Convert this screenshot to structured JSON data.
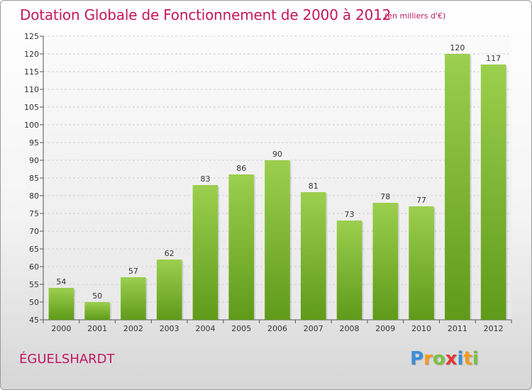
{
  "title": "Dotation Globale de Fonctionnement de 2000 à 2012",
  "subtitle": "(en milliers d'€)",
  "commune": "ÉGUELSHARDT",
  "logo": {
    "letters": [
      "P",
      "r",
      "o",
      "x",
      "i",
      "t",
      "i"
    ],
    "colors": [
      "#3b8fd9",
      "#f29b1d",
      "#7cc242",
      "#e53935",
      "#3b8fd9",
      "#f29b1d",
      "#7cc242"
    ]
  },
  "chart_data": {
    "type": "bar",
    "title": "Dotation Globale de Fonctionnement de 2000 à 2012",
    "subtitle": "(en milliers d'€)",
    "categories": [
      "2000",
      "2001",
      "2002",
      "2003",
      "2004",
      "2005",
      "2006",
      "2007",
      "2008",
      "2009",
      "2010",
      "2011",
      "2012"
    ],
    "values": [
      54,
      50,
      57,
      62,
      83,
      86,
      90,
      81,
      73,
      78,
      77,
      120,
      117
    ],
    "ylim": [
      45,
      125
    ],
    "yticks": [
      45,
      50,
      55,
      60,
      65,
      70,
      75,
      80,
      85,
      90,
      95,
      100,
      105,
      110,
      115,
      120,
      125
    ],
    "grid": true,
    "bar_color_top": "#9ccf4e",
    "bar_color_bottom": "#5f9a1a"
  }
}
